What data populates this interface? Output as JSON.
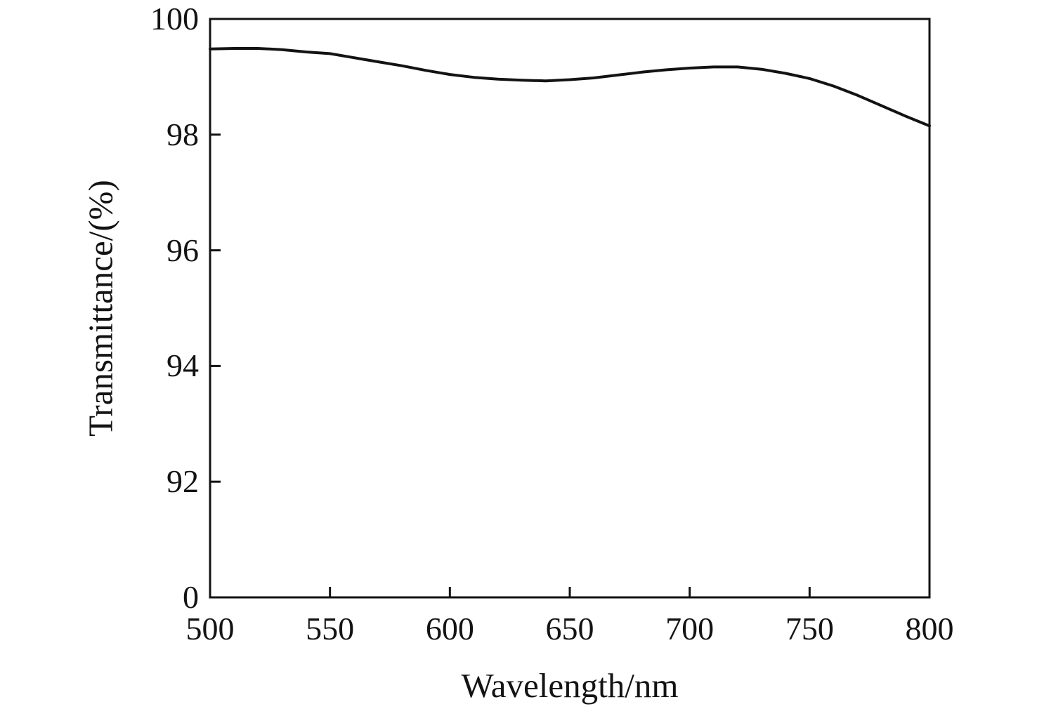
{
  "figure": {
    "background": "#ffffff",
    "axis_color": "#131313",
    "text_color": "#131313"
  },
  "chart_data": {
    "type": "line",
    "title": "",
    "xlabel": "Wavelength/nm",
    "ylabel": "Transmittance/(%)",
    "xlim": [
      500,
      800
    ],
    "x_ticks": [
      500,
      550,
      600,
      650,
      700,
      750,
      800
    ],
    "y_ticks": [
      0,
      92,
      94,
      96,
      98,
      100
    ],
    "y_axis_note": "broken axis: tick values 0,92,94,96,98,100 drawn evenly spaced",
    "grid": false,
    "legend_position": "none",
    "series": [
      {
        "name": "transmittance",
        "color": "#131313",
        "x": [
          500,
          510,
          520,
          530,
          540,
          550,
          560,
          570,
          580,
          590,
          600,
          610,
          620,
          630,
          640,
          650,
          660,
          670,
          680,
          690,
          700,
          710,
          720,
          730,
          740,
          750,
          760,
          770,
          780,
          790,
          800
        ],
        "y": [
          99.48,
          99.49,
          99.49,
          99.47,
          99.43,
          99.4,
          99.33,
          99.26,
          99.19,
          99.11,
          99.04,
          98.99,
          98.96,
          98.94,
          98.93,
          98.95,
          98.98,
          99.03,
          99.08,
          99.12,
          99.15,
          99.17,
          99.17,
          99.13,
          99.06,
          98.97,
          98.84,
          98.68,
          98.5,
          98.32,
          98.15
        ]
      }
    ]
  }
}
